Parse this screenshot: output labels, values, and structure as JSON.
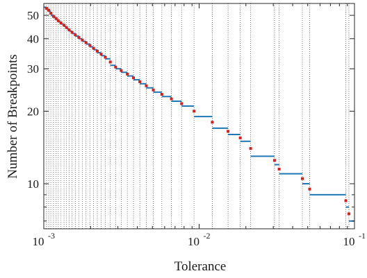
{
  "chart_data": {
    "type": "line",
    "title": "",
    "xlabel": "Tolerance",
    "ylabel": "Number of Breakpoints",
    "x_scale": "log",
    "y_scale": "log",
    "xlim": [
      0.001,
      0.1
    ],
    "ylim": [
      6.5,
      56
    ],
    "grid": "vertical dotted lines at breakpoint tolerances",
    "legend": "none",
    "x_ticks": [
      {
        "value": 0.001,
        "base": "10",
        "exp": "-3"
      },
      {
        "value": 0.01,
        "base": "10",
        "exp": "-2"
      },
      {
        "value": 0.1,
        "base": "10",
        "exp": "-1"
      }
    ],
    "y_ticks": [
      {
        "value": 10,
        "label": "10"
      },
      {
        "value": 20,
        "label": "20"
      },
      {
        "value": 30,
        "label": "30"
      },
      {
        "value": 40,
        "label": "40"
      },
      {
        "value": 50,
        "label": "50"
      }
    ],
    "series": [
      {
        "kind": "step",
        "color": "#1f77b4",
        "x": [
          0.001,
          0.00104,
          0.001075,
          0.00111,
          0.001155,
          0.0012,
          0.00124,
          0.00129,
          0.00135,
          0.0014,
          0.001455,
          0.00152,
          0.001595,
          0.00168,
          0.00177,
          0.00187,
          0.00198,
          0.00209,
          0.00221,
          0.00234,
          0.00249,
          0.00268,
          0.0029,
          0.00315,
          0.00345,
          0.00378,
          0.00415,
          0.00457,
          0.00507,
          0.00575,
          0.00663,
          0.00771,
          0.00927,
          0.01215,
          0.01535,
          0.0184,
          0.02145,
          0.03055,
          0.03275,
          0.0462,
          0.05145,
          0.08795,
          0.09203,
          0.1
        ],
        "y": [
          54,
          53,
          52,
          50,
          49,
          48,
          47,
          46,
          45,
          44,
          43,
          42,
          41,
          40,
          39,
          38,
          37,
          36,
          35,
          34,
          33,
          31,
          30,
          29,
          28,
          27,
          26,
          25,
          24,
          23,
          22,
          21,
          19,
          17,
          16,
          15,
          13,
          12,
          11,
          10,
          9,
          8,
          7,
          6.6
        ]
      },
      {
        "kind": "markers",
        "color": "#d62020",
        "x": [
          0.00104,
          0.001075,
          0.00111,
          0.001155,
          0.0012,
          0.00124,
          0.00129,
          0.00135,
          0.0014,
          0.001455,
          0.00152,
          0.001595,
          0.00168,
          0.00177,
          0.00187,
          0.00198,
          0.00209,
          0.00221,
          0.00234,
          0.00249,
          0.00268,
          0.0029,
          0.00315,
          0.00345,
          0.00378,
          0.00415,
          0.00457,
          0.00507,
          0.00575,
          0.00663,
          0.00771,
          0.00927,
          0.01215,
          0.01535,
          0.0184,
          0.02145,
          0.03055,
          0.03275,
          0.0462,
          0.05145,
          0.08795,
          0.09203
        ],
        "y": [
          53.5,
          52.5,
          51,
          49.5,
          48.5,
          47.5,
          46.5,
          45.5,
          44.5,
          43.5,
          42.5,
          41.5,
          40.5,
          39.5,
          38.5,
          37.5,
          36.5,
          35.5,
          34.5,
          33.5,
          32,
          30.5,
          29.5,
          28.5,
          27.5,
          26.5,
          25.5,
          24.5,
          23.5,
          22.5,
          21.5,
          20,
          18,
          16.5,
          15.5,
          14,
          12.5,
          11.5,
          10.5,
          9.5,
          8.5,
          7.5
        ]
      }
    ]
  }
}
